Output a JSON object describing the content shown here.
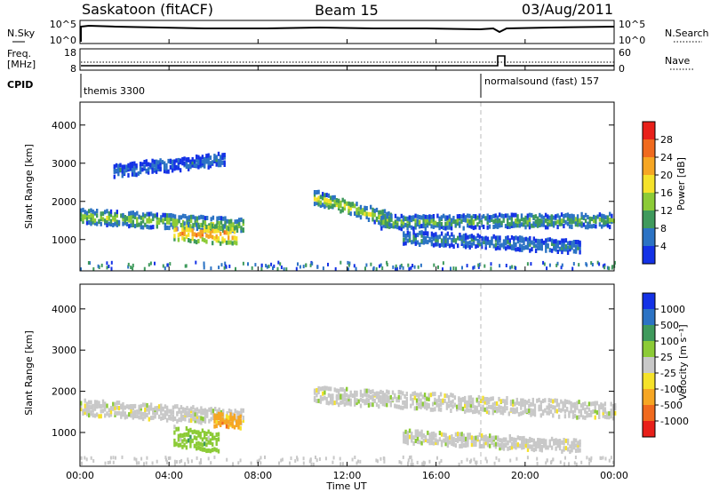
{
  "header": {
    "station": "Saskatoon (fitACF)",
    "beam": "Beam 15",
    "date": "03/Aug/2011"
  },
  "noise_panel": {
    "left_label": "N.Sky",
    "right_label": "N.Search",
    "left_ticks": [
      "10^5",
      "10^0"
    ],
    "right_ticks": [
      "10^5",
      "10^0"
    ]
  },
  "freq_panel": {
    "left_label_1": "Freq.",
    "left_label_2": "[MHz]",
    "right_label": "Nave",
    "left_ticks": [
      "18",
      "8"
    ],
    "right_ticks": [
      "60",
      "0"
    ]
  },
  "cpid": {
    "label": "CPID",
    "segments": [
      {
        "text": "themis 3300",
        "start_hour": 0
      },
      {
        "text": "normalsound (fast) 157",
        "start_hour": 18
      }
    ]
  },
  "chart_data": [
    {
      "type": "heatmap",
      "name": "power",
      "ylabel": "Slant Range [km]",
      "ylim": [
        180,
        4600
      ],
      "yticks": [
        1000,
        2000,
        3000,
        4000
      ],
      "colorbar_label": "Power [dB]",
      "colorbar_ticks": [
        "4",
        "8",
        "12",
        "16",
        "20",
        "24",
        "28"
      ],
      "colorbar_colors": [
        "#1432e6",
        "#2c73c4",
        "#3f9a5c",
        "#8ccb36",
        "#f5e22a",
        "#f6a623",
        "#f06a1e",
        "#e8201a"
      ],
      "scale_range": [
        0,
        32
      ],
      "bands": [
        {
          "t_start": 0.0,
          "t_end": 7.3,
          "center_km_start": 1600,
          "center_km_end": 1350,
          "width_km": 280,
          "level": 15
        },
        {
          "t_start": 4.2,
          "t_end": 7.0,
          "center_km_start": 1200,
          "center_km_end": 1100,
          "width_km": 380,
          "level": 26
        },
        {
          "t_start": 10.5,
          "t_end": 14.0,
          "center_km_start": 2100,
          "center_km_end": 1500,
          "width_km": 280,
          "level": 17
        },
        {
          "t_start": 13.5,
          "t_end": 24.0,
          "center_km_start": 1450,
          "center_km_end": 1500,
          "width_km": 260,
          "level": 12
        },
        {
          "t_start": 14.5,
          "t_end": 22.5,
          "center_km_start": 1050,
          "center_km_end": 800,
          "width_km": 240,
          "level": 9
        },
        {
          "t_start": 1.5,
          "t_end": 6.5,
          "center_km_start": 2800,
          "center_km_end": 3100,
          "width_km": 240,
          "level": 6
        }
      ]
    },
    {
      "type": "heatmap",
      "name": "velocity",
      "xlabel": "Time UT",
      "ylabel": "Slant Range [km]",
      "ylim": [
        180,
        4600
      ],
      "yticks": [
        1000,
        2000,
        3000,
        4000
      ],
      "colorbar_label": "Velocity [m s⁻¹]",
      "colorbar_ticks": [
        "1000",
        "500",
        "100",
        "25",
        "-25",
        "-100",
        "-500",
        "-1000"
      ],
      "colorbar_colors": [
        "#1432e6",
        "#2c73c4",
        "#3f9a5c",
        "#8ccb36",
        "#c8c8c8",
        "#f5e22a",
        "#f6a623",
        "#f06a1e",
        "#e8201a"
      ],
      "bands": [
        {
          "t_start": 0.0,
          "t_end": 7.3,
          "center_km_start": 1600,
          "center_km_end": 1350,
          "width_km": 280,
          "color_index": 4
        },
        {
          "t_start": 4.2,
          "t_end": 6.2,
          "center_km_start": 900,
          "center_km_end": 750,
          "width_km": 400,
          "color_index": 3
        },
        {
          "t_start": 6.0,
          "t_end": 7.2,
          "center_km_start": 1300,
          "center_km_end": 1250,
          "width_km": 250,
          "color_index": 6
        },
        {
          "t_start": 10.5,
          "t_end": 24.0,
          "center_km_start": 1900,
          "center_km_end": 1500,
          "width_km": 300,
          "color_index": 4
        },
        {
          "t_start": 14.5,
          "t_end": 22.5,
          "center_km_start": 900,
          "center_km_end": 650,
          "width_km": 220,
          "color_index": 4
        }
      ]
    }
  ],
  "time_axis": {
    "xlabel": "Time UT",
    "ticks": [
      "00:00",
      "04:00",
      "08:00",
      "12:00",
      "16:00",
      "20:00",
      "00:00"
    ],
    "xlim_hours": [
      0,
      24
    ],
    "mode_change_hour": 18
  }
}
